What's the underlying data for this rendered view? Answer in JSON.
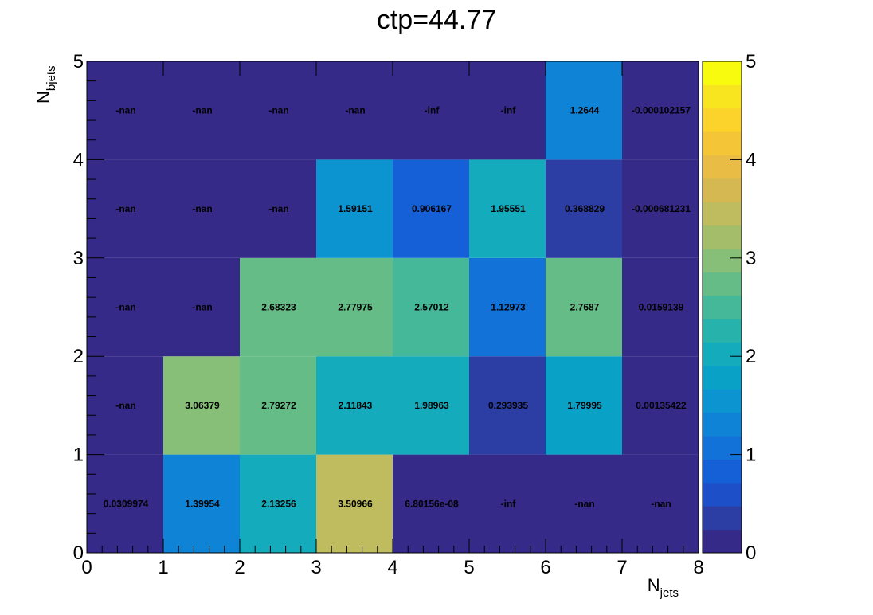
{
  "chart_data": {
    "type": "heatmap",
    "title": "ctp=44.77",
    "xlabel": {
      "main": "N",
      "sub": "jets"
    },
    "ylabel": {
      "main": "N",
      "sub": "bjets"
    },
    "xlim": [
      0,
      8
    ],
    "ylim": [
      0,
      5
    ],
    "x_ticks": [
      "0",
      "1",
      "2",
      "3",
      "4",
      "5",
      "6",
      "7",
      "8"
    ],
    "y_ticks": [
      "0",
      "1",
      "2",
      "3",
      "4",
      "5"
    ],
    "z_range": [
      0,
      5
    ],
    "z_ticks": [
      "0",
      "1",
      "2",
      "3",
      "4",
      "5"
    ],
    "palette": [
      "#352a87",
      "#2c3da3",
      "#1c4fc8",
      "#1560d6",
      "#1272d8",
      "#0f84d6",
      "#0c94d0",
      "#0aa1c7",
      "#14abbc",
      "#27b3ab",
      "#44b898",
      "#66bc86",
      "#87be78",
      "#a4bd6b",
      "#bfbb5f",
      "#d6b853",
      "#e8bc45",
      "#f4c537",
      "#fbd32b",
      "#f8e51f",
      "#f9fb0e"
    ],
    "cells": [
      {
        "x": 0,
        "y": 0,
        "value": 0.0309974,
        "label": "0.0309974"
      },
      {
        "x": 1,
        "y": 0,
        "value": 1.39954,
        "label": "1.39954"
      },
      {
        "x": 2,
        "y": 0,
        "value": 2.13256,
        "label": "2.13256"
      },
      {
        "x": 3,
        "y": 0,
        "value": 3.50966,
        "label": "3.50966"
      },
      {
        "x": 4,
        "y": 0,
        "value": 6.80156e-08,
        "label": "6.80156e-08"
      },
      {
        "x": 5,
        "y": 0,
        "value": null,
        "label": "-inf"
      },
      {
        "x": 6,
        "y": 0,
        "value": null,
        "label": "-nan"
      },
      {
        "x": 7,
        "y": 0,
        "value": null,
        "label": "-nan"
      },
      {
        "x": 0,
        "y": 1,
        "value": null,
        "label": "-nan"
      },
      {
        "x": 1,
        "y": 1,
        "value": 3.06379,
        "label": "3.06379"
      },
      {
        "x": 2,
        "y": 1,
        "value": 2.79272,
        "label": "2.79272"
      },
      {
        "x": 3,
        "y": 1,
        "value": 2.11843,
        "label": "2.11843"
      },
      {
        "x": 4,
        "y": 1,
        "value": 1.98963,
        "label": "1.98963"
      },
      {
        "x": 5,
        "y": 1,
        "value": 0.293935,
        "label": "0.293935"
      },
      {
        "x": 6,
        "y": 1,
        "value": 1.79995,
        "label": "1.79995"
      },
      {
        "x": 7,
        "y": 1,
        "value": 0.00135422,
        "label": "0.00135422"
      },
      {
        "x": 0,
        "y": 2,
        "value": null,
        "label": "-nan"
      },
      {
        "x": 1,
        "y": 2,
        "value": null,
        "label": "-nan"
      },
      {
        "x": 2,
        "y": 2,
        "value": 2.68323,
        "label": "2.68323"
      },
      {
        "x": 3,
        "y": 2,
        "value": 2.77975,
        "label": "2.77975"
      },
      {
        "x": 4,
        "y": 2,
        "value": 2.57012,
        "label": "2.57012"
      },
      {
        "x": 5,
        "y": 2,
        "value": 1.12973,
        "label": "1.12973"
      },
      {
        "x": 6,
        "y": 2,
        "value": 2.7687,
        "label": "2.7687"
      },
      {
        "x": 7,
        "y": 2,
        "value": 0.0159139,
        "label": "0.0159139"
      },
      {
        "x": 0,
        "y": 3,
        "value": null,
        "label": "-nan"
      },
      {
        "x": 1,
        "y": 3,
        "value": null,
        "label": "-nan"
      },
      {
        "x": 2,
        "y": 3,
        "value": null,
        "label": "-nan"
      },
      {
        "x": 3,
        "y": 3,
        "value": 1.59151,
        "label": "1.59151"
      },
      {
        "x": 4,
        "y": 3,
        "value": 0.906167,
        "label": "0.906167"
      },
      {
        "x": 5,
        "y": 3,
        "value": 1.95551,
        "label": "1.95551"
      },
      {
        "x": 6,
        "y": 3,
        "value": 0.368829,
        "label": "0.368829"
      },
      {
        "x": 7,
        "y": 3,
        "value": -0.000681231,
        "label": "-0.000681231"
      },
      {
        "x": 0,
        "y": 4,
        "value": null,
        "label": "-nan"
      },
      {
        "x": 1,
        "y": 4,
        "value": null,
        "label": "-nan"
      },
      {
        "x": 2,
        "y": 4,
        "value": null,
        "label": "-nan"
      },
      {
        "x": 3,
        "y": 4,
        "value": null,
        "label": "-nan"
      },
      {
        "x": 4,
        "y": 4,
        "value": null,
        "label": "-inf"
      },
      {
        "x": 5,
        "y": 4,
        "value": null,
        "label": "-inf"
      },
      {
        "x": 6,
        "y": 4,
        "value": 1.2644,
        "label": "1.2644"
      },
      {
        "x": 7,
        "y": 4,
        "value": -0.000102157,
        "label": "-0.000102157"
      }
    ]
  }
}
